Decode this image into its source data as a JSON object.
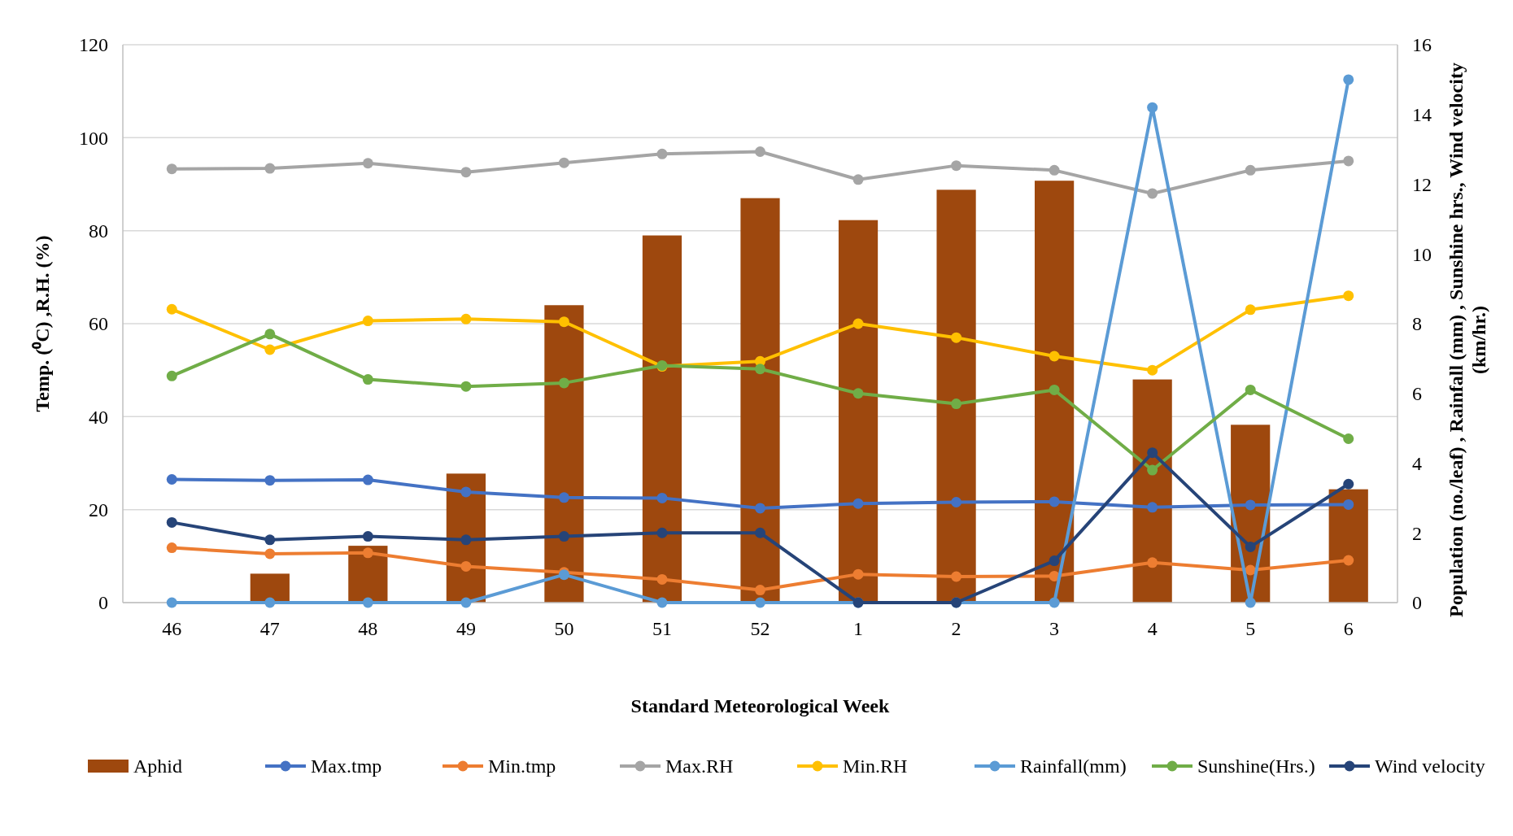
{
  "chart_data": {
    "type": "line",
    "xlabel": "Standard Meteorological Week",
    "ylabel": "Temp. (⁰C) ,R.H. (%)",
    "y2label": "Population (no./leaf) , Rainfall (mm) , Sunshine hrs., Wind velocity (km/hr.)",
    "categories": [
      "46",
      "47",
      "48",
      "49",
      "50",
      "51",
      "52",
      "1",
      "2",
      "3",
      "4",
      "5",
      "6"
    ],
    "series": [
      {
        "name": "Aphid",
        "type": "bar",
        "axis": "y2",
        "color": "#9e480e",
        "values": [
          0,
          0.83,
          1.63,
          3.7,
          8.53,
          10.53,
          11.6,
          10.97,
          11.84,
          12.1,
          6.4,
          5.1,
          3.25
        ]
      },
      {
        "name": "Max.tmp",
        "color": "#4472c4",
        "values": [
          26.5,
          26.3,
          26.4,
          23.8,
          22.6,
          22.5,
          20.3,
          21.3,
          21.6,
          21.7,
          20.5,
          21,
          21.1
        ]
      },
      {
        "name": "Min.tmp",
        "color": "#ed7d31",
        "values": [
          11.8,
          10.5,
          10.7,
          7.8,
          6.5,
          5,
          2.7,
          6.1,
          5.6,
          5.7,
          8.6,
          7,
          9.1
        ]
      },
      {
        "name": "Max.RH",
        "color": "#a5a5a5",
        "values": [
          93.3,
          93.4,
          94.5,
          92.6,
          94.6,
          96.5,
          97,
          91,
          94,
          93,
          88,
          93,
          95
        ]
      },
      {
        "name": "Min.RH",
        "color": "#ffc000",
        "values": [
          63.1,
          54.4,
          60.6,
          61,
          60.4,
          50.8,
          51.9,
          60,
          57,
          53,
          50,
          63,
          66
        ]
      },
      {
        "name": "Rainfall(mm)",
        "axis": "y2",
        "color": "#5b9bd5",
        "values": [
          0,
          0,
          0,
          0,
          0.8,
          0,
          0,
          0,
          0,
          0,
          14.2,
          0,
          15
        ]
      },
      {
        "name": "Sunshine(Hrs.)",
        "axis": "y2",
        "color": "#70ad47",
        "values": [
          6.5,
          7.7,
          6.4,
          6.2,
          6.3,
          6.8,
          6.7,
          6.0,
          5.7,
          6.1,
          3.8,
          6.1,
          4.7
        ]
      },
      {
        "name": "Wind velocity",
        "axis": "y2",
        "color": "#264478",
        "values": [
          2.3,
          1.8,
          1.9,
          1.8,
          1.9,
          2.0,
          2.0,
          0,
          0,
          1.2,
          4.3,
          1.6,
          3.4
        ]
      }
    ],
    "ylim": [
      0,
      120
    ],
    "yticks": [
      0,
      20,
      40,
      60,
      80,
      100,
      120
    ],
    "y2lim": [
      0,
      16
    ],
    "y2ticks": [
      0,
      2,
      4,
      6,
      8,
      10,
      12,
      14,
      16
    ],
    "grid": "y",
    "legend": "bottom",
    "marker": "circle"
  }
}
